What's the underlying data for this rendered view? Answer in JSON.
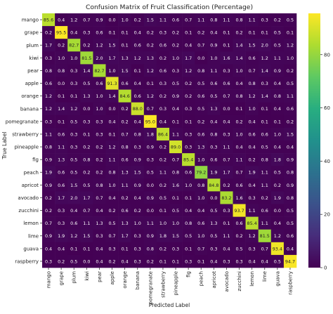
{
  "chart_data": {
    "type": "heatmap",
    "title": "Confusion Matrix of Fruit Classification (Percentage)",
    "xlabel": "Predicted Label",
    "ylabel": "True Label",
    "categories": [
      "mango",
      "grape",
      "plum",
      "kiwi",
      "pear",
      "apple",
      "orange",
      "banana",
      "pomegranate",
      "strawberry",
      "pineapple",
      "fig",
      "peach",
      "apricot",
      "avocado",
      "zucchini",
      "lemon",
      "lime",
      "guava",
      "raspberry"
    ],
    "values": [
      [
        85.6,
        0.4,
        1.2,
        0.7,
        0.9,
        0.0,
        1.0,
        0.2,
        1.5,
        1.1,
        0.6,
        0.7,
        1.1,
        0.8,
        1.1,
        0.8,
        1.1,
        0.3,
        0.2,
        0.5
      ],
      [
        0.2,
        95.5,
        0.4,
        0.3,
        0.6,
        0.1,
        0.1,
        0.4,
        0.2,
        0.3,
        0.2,
        0.1,
        0.2,
        0.4,
        0.1,
        0.2,
        0.1,
        0.1,
        0.5,
        0.1
      ],
      [
        1.7,
        0.2,
        82.7,
        0.2,
        1.2,
        1.5,
        0.1,
        0.6,
        0.2,
        0.6,
        0.2,
        0.4,
        0.7,
        0.9,
        0.1,
        1.4,
        1.5,
        2.0,
        0.5,
        1.2
      ],
      [
        0.3,
        1.0,
        1.0,
        81.5,
        2.0,
        1.7,
        1.3,
        1.2,
        1.3,
        0.2,
        1.0,
        1.7,
        0.0,
        1.0,
        1.6,
        1.4,
        0.6,
        1.2,
        1.1,
        1.0
      ],
      [
        0.8,
        0.8,
        0.3,
        1.4,
        82.7,
        1.0,
        1.5,
        0.1,
        1.2,
        0.6,
        0.3,
        1.2,
        0.8,
        1.1,
        0.3,
        1.0,
        0.7,
        1.4,
        0.9,
        0.2
      ],
      [
        0.6,
        0.0,
        0.3,
        0.5,
        0.6,
        91.3,
        0.6,
        0.4,
        0.1,
        0.3,
        0.5,
        0.2,
        0.5,
        0.6,
        0.6,
        0.4,
        0.8,
        0.3,
        0.4,
        0.5
      ],
      [
        1.2,
        0.1,
        0.1,
        1.3,
        1.0,
        1.4,
        84.6,
        0.6,
        1.2,
        0.2,
        0.9,
        0.2,
        0.6,
        0.5,
        0.7,
        0.8,
        1.2,
        1.4,
        0.8,
        1.1
      ],
      [
        1.2,
        1.4,
        1.2,
        0.0,
        1.0,
        0.0,
        0.2,
        88.0,
        0.7,
        0.3,
        0.4,
        0.3,
        0.5,
        1.3,
        0.0,
        0.1,
        1.0,
        0.1,
        0.4,
        0.6
      ],
      [
        0.3,
        0.1,
        0.5,
        0.3,
        0.3,
        0.4,
        0.2,
        0.4,
        95.0,
        0.4,
        0.1,
        0.1,
        0.2,
        0.4,
        0.4,
        0.2,
        0.4,
        0.1,
        0.1,
        0.2
      ],
      [
        1.1,
        0.6,
        0.3,
        0.1,
        0.3,
        0.1,
        0.7,
        0.8,
        1.8,
        86.4,
        1.1,
        0.3,
        0.6,
        0.8,
        0.3,
        1.0,
        0.6,
        0.6,
        1.0,
        1.5
      ],
      [
        0.8,
        1.1,
        0.3,
        0.2,
        0.2,
        1.2,
        0.8,
        0.3,
        0.9,
        0.2,
        89.0,
        0.3,
        1.3,
        0.3,
        1.1,
        0.4,
        0.4,
        0.5,
        0.4,
        0.4
      ],
      [
        0.9,
        1.3,
        0.5,
        0.8,
        0.2,
        1.1,
        0.6,
        0.9,
        0.3,
        0.2,
        0.7,
        85.4,
        1.0,
        0.6,
        0.7,
        1.1,
        0.2,
        0.8,
        1.8,
        0.9
      ],
      [
        1.9,
        0.6,
        0.5,
        0.2,
        0.2,
        0.8,
        1.3,
        1.5,
        0.5,
        1.1,
        0.8,
        0.6,
        79.2,
        1.9,
        1.7,
        0.7,
        1.9,
        1.1,
        0.5,
        0.8
      ],
      [
        0.9,
        0.6,
        1.5,
        0.5,
        0.8,
        1.0,
        1.1,
        0.9,
        0.0,
        0.2,
        1.6,
        1.0,
        0.8,
        84.8,
        0.2,
        0.6,
        0.4,
        1.1,
        0.2,
        0.9
      ],
      [
        0.2,
        1.7,
        2.0,
        1.7,
        0.7,
        0.4,
        0.2,
        0.4,
        0.9,
        0.5,
        0.1,
        0.1,
        1.0,
        0.0,
        83.2,
        1.6,
        0.3,
        0.2,
        1.9,
        0.8
      ],
      [
        0.2,
        0.3,
        0.4,
        0.7,
        0.4,
        0.2,
        0.6,
        0.2,
        0.0,
        0.1,
        0.5,
        0.4,
        0.4,
        0.5,
        0.3,
        93.7,
        1.1,
        0.6,
        0.0,
        0.5
      ],
      [
        0.7,
        0.3,
        0.6,
        1.1,
        1.3,
        0.5,
        1.3,
        1.0,
        1.1,
        1.0,
        1.0,
        0.8,
        0.6,
        1.3,
        0.1,
        0.6,
        85.4,
        1.1,
        0.4,
        0.5
      ],
      [
        0.9,
        1.9,
        1.2,
        1.5,
        0.3,
        0.7,
        1.7,
        0.3,
        0.9,
        1.8,
        1.5,
        0.5,
        1.0,
        0.5,
        1.1,
        0.2,
        1.2,
        81.5,
        1.2,
        0.6
      ],
      [
        0.4,
        0.4,
        0.1,
        0.1,
        0.4,
        0.3,
        0.1,
        0.3,
        0.8,
        0.2,
        0.3,
        0.1,
        0.7,
        0.3,
        0.4,
        0.5,
        0.3,
        0.7,
        93.4,
        0.4
      ],
      [
        0.3,
        0.2,
        0.5,
        0.0,
        0.4,
        0.2,
        0.4,
        0.3,
        0.2,
        0.1,
        0.1,
        0.3,
        0.1,
        0.4,
        0.3,
        0.3,
        0.4,
        0.4,
        0.5,
        94.7
      ]
    ],
    "colorscale": "viridis",
    "colorbar": {
      "min": 0,
      "max": 95.5,
      "ticks": [
        0,
        20,
        40,
        60,
        80
      ]
    },
    "value_format": "0.0"
  }
}
